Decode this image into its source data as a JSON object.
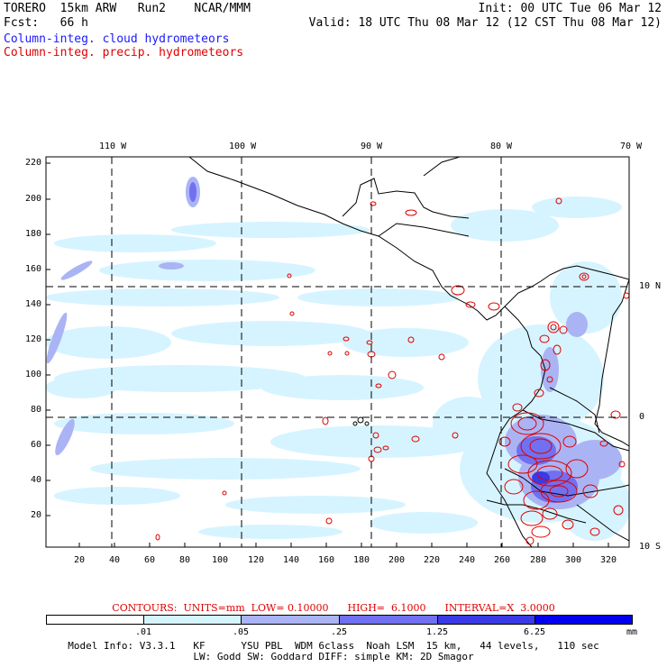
{
  "header": {
    "left_line1": "TORERO  15km ARW   Run2    NCAR/MMM",
    "left_line2": "Fcst:   66 h",
    "right_line1": "Init: 00 UTC Tue 06 Mar 12",
    "right_line2": "Valid: 18 UTC Thu 08 Mar 12 (12 CST Thu 08 Mar 12)",
    "field1": "Column-integ. cloud hydrometeors",
    "field2": "Column-integ. precip. hydrometeors",
    "field1_color": "#1a1aff",
    "field2_color": "#e00000"
  },
  "map": {
    "top_lon_labels": [
      "110 W",
      "100 W",
      "90 W",
      "80 W",
      "70 W"
    ],
    "right_lat_labels": [
      "10 N",
      "0",
      "10 S"
    ],
    "y_ticks": [
      "220",
      "200",
      "180",
      "160",
      "140",
      "120",
      "100",
      "80",
      "60",
      "40",
      "20"
    ],
    "x_ticks": [
      "20",
      "40",
      "60",
      "80",
      "100",
      "120",
      "140",
      "160",
      "180",
      "200",
      "220",
      "240",
      "260",
      "280",
      "300",
      "320"
    ],
    "land_color": "#000000",
    "cloud_fill_color": "#d6f4ff",
    "precip_contour_color": "#e00000"
  },
  "contours_line": "CONTOURS:  UNITS=mm  LOW= 0.10000      HIGH=  6.1000      INTERVAL=X  3.0000",
  "legend": {
    "labels": [
      ".01",
      ".05",
      ".25",
      "1.25",
      "6.25"
    ],
    "unit": "mm",
    "colors": [
      "#ffffff",
      "#d6f4ff",
      "#aab4f4",
      "#7070f0",
      "#3a3ae6",
      "#0000f0"
    ]
  },
  "footer": {
    "line1": "Model Info: V3.3.1   KF      YSU PBL  WDM 6class  Noah LSM  15 km,   44 levels,   110 sec",
    "line2": "LW: Godd SW: Goddard DIFF: simple KM: 2D Smagor"
  }
}
